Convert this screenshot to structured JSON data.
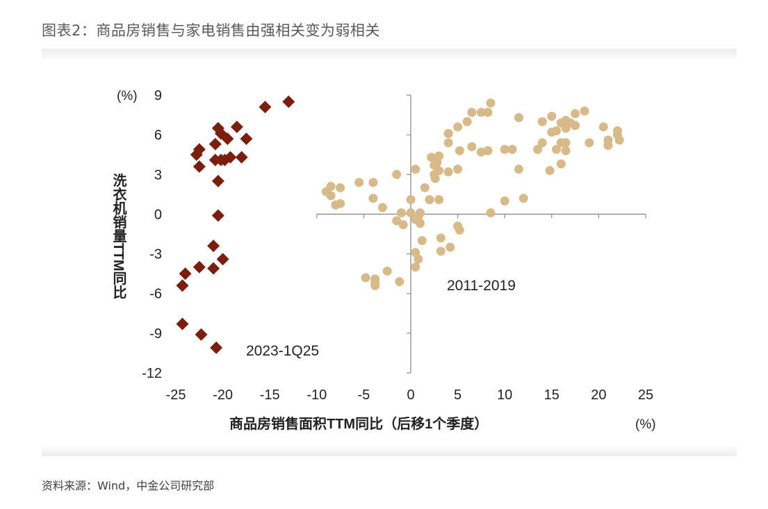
{
  "title": "图表2：商品房销售与家电销售由强相关变为弱相关",
  "source": "资料来源：Wind，中金公司研究部",
  "chart_data": {
    "type": "scatter",
    "xlabel": "商品房销售面积TTM同比（后移1个季度）",
    "ylabel": "洗衣机销量TTM同比",
    "x_unit": "(%)",
    "y_unit": "(%)",
    "xlim": [
      -25,
      25
    ],
    "ylim": [
      -12,
      9
    ],
    "x_ticks": [
      "-25",
      "-20",
      "-15",
      "-10",
      "-5",
      "0",
      "5",
      "10",
      "15",
      "20",
      "25"
    ],
    "y_ticks": [
      "9",
      "6",
      "3",
      "0",
      "-3",
      "-6",
      "-9",
      "-12"
    ],
    "annotations": [
      "2023-1Q25",
      "2011-2019"
    ],
    "colors": {
      "series_2023": "#7b1e0e",
      "series_2011": "#d8b988",
      "axis": "#8c8c8c"
    },
    "series": [
      {
        "name": "2023-1Q25",
        "marker": "diamond",
        "points": [
          [
            -13,
            8.5
          ],
          [
            -15.5,
            8.1
          ],
          [
            -18.5,
            6.6
          ],
          [
            -20.5,
            6.5
          ],
          [
            -20.2,
            6.1
          ],
          [
            -19.5,
            5.7
          ],
          [
            -17.5,
            5.7
          ],
          [
            -20.8,
            5.3
          ],
          [
            -22.5,
            4.9
          ],
          [
            -22.8,
            4.5
          ],
          [
            -19.2,
            4.3
          ],
          [
            -18,
            4.3
          ],
          [
            -19.8,
            4.1
          ],
          [
            -20.2,
            4.1
          ],
          [
            -20.8,
            4.1
          ],
          [
            -22.5,
            3.6
          ],
          [
            -20.5,
            2.5
          ],
          [
            -20.5,
            -0.1
          ],
          [
            -21,
            -2.4
          ],
          [
            -20,
            -3.4
          ],
          [
            -22.5,
            -4
          ],
          [
            -21,
            -4.1
          ],
          [
            -24,
            -4.5
          ],
          [
            -24.3,
            -5.4
          ],
          [
            -24.3,
            -8.3
          ],
          [
            -22.3,
            -9.1
          ],
          [
            -20.7,
            -10.1
          ]
        ]
      },
      {
        "name": "2011-2019",
        "marker": "circle",
        "points": [
          [
            8.5,
            8.4
          ],
          [
            6.5,
            7.7
          ],
          [
            7.5,
            7.7
          ],
          [
            8.2,
            7.7
          ],
          [
            18.5,
            7.8
          ],
          [
            17.5,
            7.6
          ],
          [
            15,
            7.4
          ],
          [
            11.5,
            7.3
          ],
          [
            16.5,
            7.1
          ],
          [
            14,
            7
          ],
          [
            16,
            6.9
          ],
          [
            17,
            6.9
          ],
          [
            6,
            7
          ],
          [
            5,
            6.6
          ],
          [
            16.5,
            6.5
          ],
          [
            17.5,
            6.7
          ],
          [
            20.5,
            6.6
          ],
          [
            22,
            6.3
          ],
          [
            4,
            6.1
          ],
          [
            15.5,
            6.3
          ],
          [
            15,
            6.2
          ],
          [
            22,
            6
          ],
          [
            21,
            5.6
          ],
          [
            22.2,
            5.6
          ],
          [
            14,
            5.4
          ],
          [
            16,
            5.4
          ],
          [
            4,
            5.4
          ],
          [
            19,
            5.4
          ],
          [
            16.5,
            5.4
          ],
          [
            21,
            5.2
          ],
          [
            6.5,
            5.1
          ],
          [
            10,
            4.9
          ],
          [
            10.8,
            4.9
          ],
          [
            13.5,
            4.9
          ],
          [
            15.5,
            4.9
          ],
          [
            16.5,
            4.8
          ],
          [
            5.2,
            4.8
          ],
          [
            7.5,
            4.7
          ],
          [
            8.2,
            4.8
          ],
          [
            2.2,
            4.3
          ],
          [
            3,
            4.4
          ],
          [
            2.8,
            3.9
          ],
          [
            2.5,
            3.7
          ],
          [
            16,
            3.8
          ],
          [
            3,
            3.3
          ],
          [
            5,
            3.4
          ],
          [
            11.5,
            3.4
          ],
          [
            14.8,
            3.3
          ],
          [
            0.5,
            3.4
          ],
          [
            2.5,
            3
          ],
          [
            4,
            3.2
          ],
          [
            -1.5,
            3
          ],
          [
            2.6,
            2.7
          ],
          [
            -8.5,
            2.1
          ],
          [
            -7.5,
            2
          ],
          [
            -5.5,
            2.4
          ],
          [
            -4,
            2.4
          ],
          [
            -9,
            1.7
          ],
          [
            -8.5,
            1.4
          ],
          [
            1.5,
            2
          ],
          [
            -7.5,
            0.8
          ],
          [
            -8,
            0.7
          ],
          [
            -4,
            1.2
          ],
          [
            -3,
            0.5
          ],
          [
            0,
            1.1
          ],
          [
            2,
            1.1
          ],
          [
            3,
            1.1
          ],
          [
            10,
            1
          ],
          [
            12,
            1.2
          ],
          [
            8.5,
            0.1
          ],
          [
            -1,
            0.1
          ],
          [
            0,
            0.1
          ],
          [
            1,
            0.1
          ],
          [
            0.8,
            -0.2
          ],
          [
            -1.5,
            -0.5
          ],
          [
            -0.8,
            -0.8
          ],
          [
            0.5,
            -0.4
          ],
          [
            1,
            -0.7
          ],
          [
            5,
            -0.9
          ],
          [
            5.2,
            -1.2
          ],
          [
            3.2,
            -1.8
          ],
          [
            1.2,
            -2
          ],
          [
            4.2,
            -2.5
          ],
          [
            3.2,
            -2.8
          ],
          [
            0.5,
            -2.9
          ],
          [
            0.8,
            -3.4
          ],
          [
            0.5,
            -4
          ],
          [
            -2.5,
            -4.3
          ],
          [
            -4.8,
            -4.8
          ],
          [
            -3.8,
            -4.9
          ],
          [
            -3.8,
            -5.2
          ],
          [
            -3.8,
            -5.4
          ],
          [
            -1.2,
            -5.1
          ]
        ]
      }
    ]
  }
}
